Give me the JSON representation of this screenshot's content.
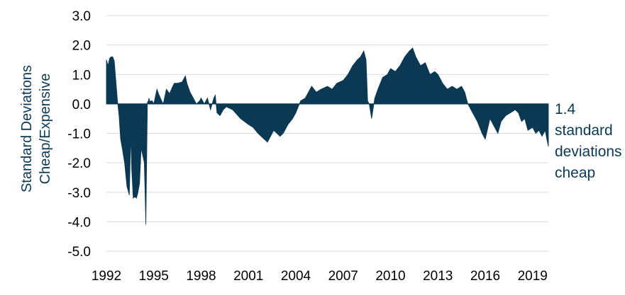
{
  "chart_data": {
    "type": "area",
    "ylabel_line1": "Standard  Deviations",
    "ylabel_line2": "Cheap/Expensive",
    "ylim": [
      -5.0,
      3.0
    ],
    "xlim": [
      1992.0,
      2020.0
    ],
    "yticks": [
      "3.0",
      "2.0",
      "1.0",
      "0.0",
      "-1.0",
      "-2.0",
      "-3.0",
      "-4.0",
      "-5.0"
    ],
    "xticks": [
      "1992",
      "1995",
      "1998",
      "2001",
      "2004",
      "2007",
      "2010",
      "2013",
      "2016",
      "2019"
    ],
    "grid": "horizontal",
    "color": "#0b3954",
    "annotation": "1.4 standard deviations cheap",
    "series": [
      {
        "x": [
          1992.0,
          1992.1,
          1992.2,
          1992.3,
          1992.4,
          1992.5,
          1992.7,
          1992.8,
          1992.9,
          1993.0,
          1993.15,
          1993.3,
          1993.45,
          1993.55,
          1993.6,
          1993.7,
          1993.8,
          1993.9,
          1994.0,
          1994.1,
          1994.2,
          1994.4,
          1994.5,
          1994.6,
          1994.65,
          1994.7,
          1994.75,
          1994.8,
          1994.9,
          1995.0,
          1995.2,
          1995.3,
          1995.5,
          1995.6,
          1995.8,
          1996.0,
          1996.2,
          1996.3,
          1996.5,
          1996.8,
          1997.0,
          1997.1,
          1997.3,
          1997.5,
          1997.7,
          1997.9,
          1998.0,
          1998.2,
          1998.4,
          1998.6,
          1998.8,
          1998.9,
          1999.0,
          1999.2,
          1999.4,
          1999.6,
          2000.0,
          2000.5,
          2001.0,
          2001.3,
          2001.6,
          2002.0,
          2002.2,
          2002.4,
          2002.6,
          2002.8,
          2003.0,
          2003.2,
          2003.5,
          2003.8,
          2004.0,
          2004.3,
          2004.6,
          2005.0,
          2005.3,
          2005.6,
          2006.0,
          2006.3,
          2006.6,
          2007.0,
          2007.3,
          2007.6,
          2007.9,
          2008.1,
          2008.3,
          2008.45,
          2008.55,
          2008.65,
          2008.8,
          2009.0,
          2009.2,
          2009.5,
          2009.8,
          2010.0,
          2010.3,
          2010.6,
          2010.9,
          2011.2,
          2011.4,
          2011.6,
          2011.9,
          2012.2,
          2012.5,
          2012.8,
          2013.0,
          2013.3,
          2013.6,
          2013.9,
          2014.2,
          2014.5,
          2014.7,
          2014.9,
          2015.2,
          2015.5,
          2015.8,
          2016.0,
          2016.3,
          2016.5,
          2016.8,
          2017.0,
          2017.3,
          2017.6,
          2017.9,
          2018.1,
          2018.3,
          2018.5,
          2018.7,
          2019.0,
          2019.2,
          2019.4,
          2019.6,
          2019.8,
          2019.9,
          2020.0
        ],
        "y": [
          1.5,
          1.3,
          1.55,
          1.6,
          1.6,
          1.45,
          0.1,
          -0.4,
          -1.2,
          -1.5,
          -2.0,
          -2.8,
          -3.1,
          -1.0,
          -2.2,
          -3.2,
          -3.15,
          -3.2,
          -3.0,
          -2.7,
          -1.5,
          -2.0,
          -4.1,
          0.05,
          0.1,
          0.2,
          0.05,
          0.1,
          0.1,
          0.0,
          0.5,
          0.35,
          0.1,
          0.0,
          0.5,
          0.35,
          0.6,
          0.7,
          0.7,
          0.75,
          0.95,
          0.7,
          0.4,
          0.2,
          0.0,
          0.1,
          0.2,
          0.0,
          0.2,
          -0.2,
          0.2,
          0.3,
          -0.3,
          -0.4,
          -0.2,
          -0.1,
          -0.2,
          -0.5,
          -0.7,
          -0.8,
          -1.0,
          -1.2,
          -1.3,
          -1.1,
          -0.9,
          -1.0,
          -1.1,
          -1.0,
          -0.7,
          -0.5,
          -0.3,
          0.1,
          0.2,
          0.6,
          0.4,
          0.5,
          0.6,
          0.5,
          0.7,
          0.8,
          1.0,
          1.3,
          1.5,
          1.6,
          1.8,
          1.5,
          0.1,
          0.0,
          -0.5,
          0.2,
          0.5,
          0.9,
          1.0,
          1.2,
          1.1,
          1.3,
          1.6,
          1.8,
          1.9,
          1.6,
          1.3,
          1.4,
          1.0,
          1.1,
          1.0,
          0.7,
          0.5,
          0.6,
          0.5,
          0.6,
          0.4,
          0.0,
          -0.3,
          -0.6,
          -1.0,
          -1.2,
          -0.5,
          -0.7,
          -1.0,
          -0.6,
          -0.4,
          -0.3,
          -0.2,
          -0.3,
          -0.6,
          -0.5,
          -0.9,
          -0.8,
          -1.0,
          -0.9,
          -1.1,
          -0.9,
          -1.2,
          -1.45
        ]
      }
    ]
  }
}
